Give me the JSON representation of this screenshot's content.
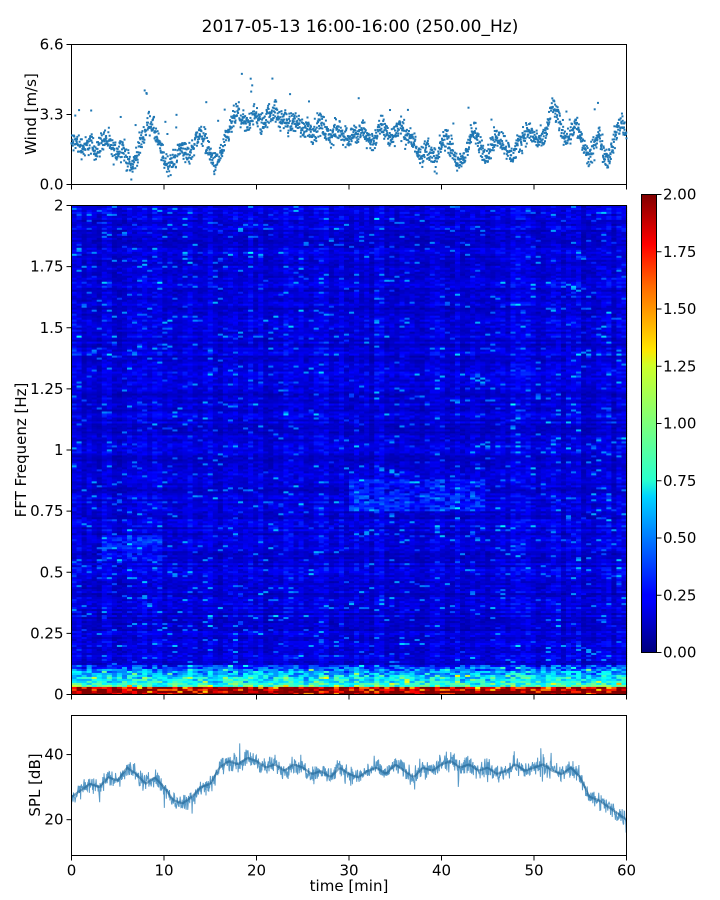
{
  "title": "2017-05-13 16:00-16:00 (250.00_Hz)",
  "chart_data": [
    {
      "name": "wind",
      "type": "scatter",
      "ylabel": "Wind [m/s]",
      "ylim": [
        0,
        6.6
      ],
      "xlim": [
        0,
        60
      ],
      "yticks": [
        0.0,
        3.3,
        6.6
      ],
      "ytick_labels": [
        "0.0",
        "3.3",
        "6.6"
      ],
      "color": "#1f77b4",
      "x": [
        0,
        0.5,
        1,
        1.5,
        2,
        2.5,
        3,
        3.5,
        4,
        4.5,
        5,
        5.5,
        6,
        6.5,
        7,
        7.5,
        8,
        8.5,
        9,
        9.5,
        10,
        10.5,
        11,
        11.5,
        12,
        12.5,
        13,
        13.5,
        14,
        14.5,
        15,
        15.5,
        16,
        16.5,
        17,
        17.5,
        18,
        18.5,
        19,
        19.5,
        20,
        20.5,
        21,
        21.5,
        22,
        22.5,
        23,
        23.5,
        24,
        24.5,
        25,
        25.5,
        26,
        26.5,
        27,
        27.5,
        28,
        28.5,
        29,
        29.5,
        30,
        30.5,
        31,
        31.5,
        32,
        32.5,
        33,
        33.5,
        34,
        34.5,
        35,
        35.5,
        36,
        36.5,
        37,
        37.5,
        38,
        38.5,
        39,
        39.5,
        40,
        40.5,
        41,
        41.5,
        42,
        42.5,
        43,
        43.5,
        44,
        44.5,
        45,
        45.5,
        46,
        46.5,
        47,
        47.5,
        48,
        48.5,
        49,
        49.5,
        50,
        50.5,
        51,
        51.5,
        52,
        52.5,
        53,
        53.5,
        54,
        54.5,
        55,
        55.5,
        56,
        56.5,
        57,
        57.5,
        58,
        58.5,
        59,
        59.5,
        60
      ],
      "y": [
        1.9,
        2.0,
        1.8,
        1.7,
        2.0,
        1.6,
        1.8,
        2.2,
        2.0,
        1.5,
        1.6,
        1.8,
        1.2,
        0.8,
        1.3,
        2.0,
        2.6,
        3.0,
        2.5,
        1.8,
        1.2,
        0.9,
        1.1,
        1.5,
        1.8,
        1.3,
        1.6,
        2.2,
        2.4,
        2.1,
        1.4,
        0.9,
        1.3,
        1.8,
        2.4,
        3.1,
        3.4,
        3.0,
        2.7,
        3.3,
        3.2,
        2.8,
        3.1,
        3.4,
        3.5,
        3.0,
        3.1,
        2.8,
        3.0,
        2.9,
        2.6,
        2.8,
        2.4,
        2.7,
        2.9,
        2.5,
        2.2,
        2.5,
        2.6,
        2.3,
        2.2,
        2.4,
        2.3,
        2.6,
        2.2,
        2.0,
        2.3,
        2.8,
        2.5,
        2.1,
        2.5,
        2.8,
        2.4,
        2.2,
        2.0,
        1.6,
        1.4,
        1.8,
        1.3,
        1.1,
        1.9,
        2.3,
        1.8,
        1.2,
        0.9,
        1.3,
        2.1,
        2.5,
        2.0,
        1.6,
        1.4,
        1.9,
        2.3,
        2.1,
        1.8,
        1.3,
        1.6,
        2.0,
        2.4,
        2.5,
        2.2,
        2.1,
        2.0,
        2.8,
        3.8,
        3.2,
        2.6,
        2.2,
        2.5,
        2.9,
        2.3,
        1.6,
        1.2,
        1.8,
        2.4,
        1.6,
        1.2,
        1.8,
        2.6,
        3.0,
        2.4
      ]
    },
    {
      "name": "spectrogram",
      "type": "heatmap",
      "ylabel": "FFT Frequenz [Hz]",
      "ylim": [
        0,
        2
      ],
      "xlim": [
        0,
        60
      ],
      "yticks": [
        0,
        0.25,
        0.5,
        0.75,
        1,
        1.25,
        1.5,
        1.75,
        2
      ],
      "ytick_labels": [
        "0",
        "0.25",
        "0.5",
        "0.75",
        "1",
        "1.25",
        "1.5",
        "1.75",
        "2"
      ],
      "colormap": "jet",
      "colorbar": {
        "range": [
          0,
          2
        ],
        "ticks": [
          "0.00",
          "0.25",
          "0.50",
          "0.75",
          "1.00",
          "1.25",
          "1.50",
          "1.75",
          "2.00"
        ]
      }
    },
    {
      "name": "spl",
      "type": "line",
      "ylabel": "SPL [dB]",
      "xlabel": "time [min]",
      "xlim": [
        0,
        60
      ],
      "ylim": [
        9,
        52
      ],
      "yticks": [
        20,
        40
      ],
      "ytick_labels": [
        "20",
        "40"
      ],
      "xticks": [
        0,
        10,
        20,
        30,
        40,
        50,
        60
      ],
      "xtick_labels": [
        "0",
        "10",
        "20",
        "30",
        "40",
        "50",
        "60"
      ],
      "color": "#1f77b4",
      "x": [
        0,
        1,
        2,
        3,
        4,
        5,
        6,
        7,
        8,
        9,
        10,
        11,
        12,
        13,
        14,
        15,
        16,
        17,
        18,
        19,
        20,
        21,
        22,
        23,
        24,
        25,
        26,
        27,
        28,
        29,
        30,
        31,
        32,
        33,
        34,
        35,
        36,
        37,
        38,
        39,
        40,
        41,
        42,
        43,
        44,
        45,
        46,
        47,
        48,
        49,
        50,
        51,
        52,
        53,
        54,
        55,
        56,
        57,
        58,
        59,
        60
      ],
      "y": [
        27,
        29,
        31,
        30,
        33,
        32,
        36,
        34,
        31,
        33,
        30,
        26,
        25,
        27,
        30,
        31,
        36,
        38,
        37,
        39,
        38,
        36,
        37,
        35,
        37,
        36,
        34,
        35,
        33,
        36,
        34,
        33,
        35,
        36,
        34,
        37,
        35,
        33,
        36,
        35,
        37,
        38,
        36,
        37,
        35,
        36,
        34,
        35,
        37,
        35,
        36,
        37,
        35,
        34,
        36,
        33,
        27,
        26,
        24,
        22,
        20
      ]
    }
  ]
}
